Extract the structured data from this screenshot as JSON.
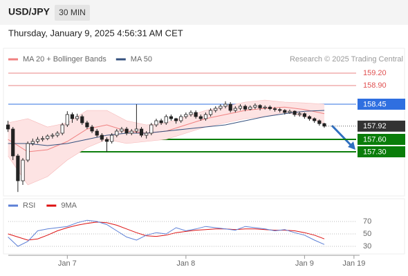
{
  "header": {
    "symbol": "USD/JPY",
    "interval": "30 MIN",
    "timestamp": "Thursday, January 9, 2025 4:56:31 AM CET"
  },
  "chart_data": [
    {
      "type": "candlestick",
      "credit": "Research © 2025 Trading Central",
      "xlim": [
        -0.5,
        71
      ],
      "ylim": [
        156.25,
        159.4
      ],
      "up_color": "#ffffff",
      "down_color": "#222222",
      "open": [
        157.95,
        157.85,
        157.2,
        156.6,
        157.1,
        157.5,
        157.55,
        157.6,
        157.62,
        157.68,
        157.7,
        157.75,
        157.95,
        158.2,
        158.1,
        158.15,
        158.0,
        157.9,
        157.8,
        157.7,
        157.6,
        157.55,
        157.7,
        157.8,
        157.85,
        157.75,
        157.8,
        157.85,
        157.7,
        157.75,
        157.95,
        158.05,
        158.0,
        158.15,
        158.1,
        158.05,
        158.15,
        158.2,
        158.25,
        158.15,
        158.1,
        158.2,
        158.3,
        158.35,
        158.4,
        158.45,
        158.3,
        158.35,
        158.4,
        158.33,
        158.38,
        158.42,
        158.36,
        158.38,
        158.34,
        158.32,
        158.3,
        158.25,
        158.28,
        158.2,
        158.22,
        158.15,
        158.1,
        158.05,
        157.98
      ],
      "high": [
        158.05,
        157.9,
        157.25,
        157.15,
        157.55,
        157.62,
        157.66,
        157.68,
        157.72,
        157.75,
        157.8,
        158.0,
        158.28,
        158.25,
        158.22,
        158.2,
        158.05,
        157.95,
        157.85,
        157.75,
        157.65,
        157.75,
        157.85,
        157.9,
        157.9,
        157.85,
        158.45,
        157.9,
        157.8,
        158.0,
        158.1,
        158.1,
        158.2,
        158.2,
        158.12,
        158.2,
        158.25,
        158.3,
        158.3,
        158.2,
        158.25,
        158.35,
        158.4,
        158.45,
        158.52,
        158.5,
        158.4,
        158.45,
        158.44,
        158.42,
        158.47,
        158.45,
        158.42,
        158.42,
        158.38,
        158.36,
        158.33,
        158.32,
        158.3,
        158.27,
        158.25,
        158.18,
        158.13,
        158.08,
        158.0
      ],
      "low": [
        157.78,
        157.1,
        156.33,
        156.5,
        157.05,
        157.45,
        157.5,
        157.55,
        157.58,
        157.62,
        157.65,
        157.7,
        157.9,
        158.0,
        158.05,
        157.95,
        157.85,
        157.75,
        157.65,
        157.55,
        157.3,
        157.5,
        157.65,
        157.75,
        157.7,
        157.7,
        157.75,
        157.65,
        157.62,
        157.7,
        157.9,
        157.95,
        157.95,
        158.05,
        157.98,
        158.0,
        158.1,
        158.15,
        158.1,
        158.05,
        158.05,
        158.15,
        158.25,
        158.3,
        158.35,
        158.25,
        158.25,
        158.3,
        158.28,
        158.3,
        158.33,
        158.3,
        158.32,
        158.3,
        158.27,
        158.25,
        158.2,
        158.22,
        158.15,
        158.15,
        158.1,
        158.05,
        158.0,
        157.93,
        157.88
      ],
      "close": [
        157.85,
        157.2,
        156.6,
        157.1,
        157.5,
        157.55,
        157.6,
        157.62,
        157.68,
        157.7,
        157.75,
        157.95,
        158.2,
        158.1,
        158.15,
        158.0,
        157.9,
        157.8,
        157.7,
        157.6,
        157.55,
        157.7,
        157.8,
        157.85,
        157.75,
        157.8,
        157.85,
        157.7,
        157.75,
        157.95,
        158.05,
        158.0,
        158.15,
        158.1,
        158.05,
        158.15,
        158.2,
        158.25,
        158.15,
        158.1,
        158.2,
        158.3,
        158.35,
        158.4,
        158.45,
        158.3,
        158.35,
        158.4,
        158.33,
        158.38,
        158.42,
        158.36,
        158.38,
        158.34,
        158.32,
        158.3,
        158.25,
        158.28,
        158.2,
        158.22,
        158.15,
        158.1,
        158.05,
        157.98,
        157.92
      ],
      "overlays": [
        {
          "name": "MA 20 + Bollinger Bands",
          "color": "#f08080",
          "band_color": "#fde3e3",
          "x": [
            0,
            4,
            8,
            12,
            16,
            20,
            24,
            28,
            32,
            36,
            40,
            44,
            48,
            52,
            56,
            60,
            64
          ],
          "values": [
            157.6,
            157.3,
            157.35,
            157.55,
            157.85,
            157.95,
            157.8,
            157.75,
            157.8,
            157.95,
            158.1,
            158.2,
            158.3,
            158.35,
            158.38,
            158.32,
            158.22
          ],
          "upper": [
            158.0,
            158.1,
            157.9,
            158.0,
            158.3,
            158.3,
            158.05,
            157.95,
            158.0,
            158.15,
            158.3,
            158.4,
            158.5,
            158.55,
            158.5,
            158.48,
            158.45
          ],
          "lower": [
            157.2,
            156.5,
            156.7,
            157.1,
            157.4,
            157.6,
            157.5,
            157.55,
            157.6,
            157.75,
            157.9,
            158.0,
            158.1,
            158.15,
            158.25,
            158.15,
            157.98
          ]
        },
        {
          "name": "MA 50",
          "color": "#34507e",
          "x": [
            0,
            4,
            8,
            12,
            16,
            20,
            24,
            28,
            32,
            36,
            40,
            44,
            48,
            52,
            56,
            60,
            64
          ],
          "values": [
            157.5,
            157.5,
            157.45,
            157.5,
            157.6,
            157.7,
            157.75,
            157.75,
            157.8,
            157.85,
            157.9,
            157.95,
            158.05,
            158.15,
            158.22,
            158.28,
            158.3
          ]
        }
      ],
      "levels": [
        {
          "value": 159.2,
          "label": "159.20",
          "color": "#e05050",
          "style": "text"
        },
        {
          "value": 158.9,
          "label": "158.90",
          "color": "#e05050",
          "style": "text"
        },
        {
          "value": 158.45,
          "label": "158.45",
          "color": "#2f6fe0",
          "style": "box"
        },
        {
          "value": 157.92,
          "label": "157.92",
          "color": "#333333",
          "style": "current"
        },
        {
          "value": 157.6,
          "label": "157.60",
          "color": "#0a7d0a",
          "style": "box"
        },
        {
          "value": 157.3,
          "label": "157.30",
          "color": "#0a7d0a",
          "style": "box"
        }
      ]
    },
    {
      "type": "line",
      "xlim": [
        -0.5,
        71
      ],
      "ylim": [
        20,
        80
      ],
      "yticks": [
        70,
        50,
        30
      ],
      "grid": true,
      "xticks": [
        {
          "value": 12,
          "label": "Jan 7"
        },
        {
          "value": 36,
          "label": "Jan 8"
        },
        {
          "value": 60,
          "label": "Jan 9"
        },
        {
          "value": 70,
          "label": "Jan 19"
        }
      ],
      "x": [
        0,
        2,
        4,
        6,
        8,
        10,
        12,
        14,
        16,
        18,
        20,
        22,
        24,
        26,
        28,
        30,
        32,
        34,
        36,
        38,
        40,
        42,
        44,
        46,
        48,
        50,
        52,
        54,
        56,
        58,
        60,
        62,
        64
      ],
      "series": [
        {
          "name": "RSI",
          "color": "#5b7fd6",
          "values": [
            45,
            30,
            38,
            55,
            58,
            60,
            62,
            68,
            72,
            70,
            65,
            55,
            45,
            40,
            48,
            52,
            50,
            60,
            55,
            58,
            62,
            60,
            58,
            56,
            62,
            60,
            58,
            55,
            57,
            52,
            48,
            40,
            33
          ]
        },
        {
          "name": "9MA",
          "color": "#dd1111",
          "values": [
            50,
            45,
            40,
            42,
            48,
            55,
            60,
            64,
            67,
            69,
            68,
            64,
            58,
            52,
            47,
            46,
            48,
            52,
            54,
            56,
            57,
            58,
            58,
            57,
            58,
            58,
            57,
            56,
            56,
            55,
            52,
            48,
            42
          ]
        }
      ]
    }
  ]
}
